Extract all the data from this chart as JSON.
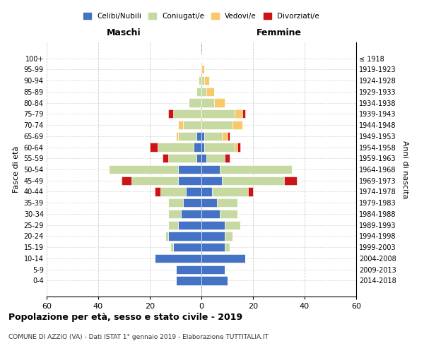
{
  "age_groups": [
    "0-4",
    "5-9",
    "10-14",
    "15-19",
    "20-24",
    "25-29",
    "30-34",
    "35-39",
    "40-44",
    "45-49",
    "50-54",
    "55-59",
    "60-64",
    "65-69",
    "70-74",
    "75-79",
    "80-84",
    "85-89",
    "90-94",
    "95-99",
    "100+"
  ],
  "birth_years": [
    "2014-2018",
    "2009-2013",
    "2004-2008",
    "1999-2003",
    "1994-1998",
    "1989-1993",
    "1984-1988",
    "1979-1983",
    "1974-1978",
    "1969-1973",
    "1964-1968",
    "1959-1963",
    "1954-1958",
    "1949-1953",
    "1944-1948",
    "1939-1943",
    "1934-1938",
    "1929-1933",
    "1924-1928",
    "1919-1923",
    "≤ 1918"
  ],
  "maschi": {
    "celibi": [
      10,
      10,
      18,
      11,
      13,
      9,
      8,
      7,
      6,
      9,
      9,
      2,
      3,
      2,
      0,
      0,
      0,
      0,
      0,
      0,
      0
    ],
    "coniugati": [
      0,
      0,
      0,
      1,
      1,
      4,
      5,
      6,
      10,
      18,
      27,
      11,
      14,
      7,
      7,
      11,
      5,
      2,
      1,
      0,
      0
    ],
    "vedovi": [
      0,
      0,
      0,
      0,
      0,
      0,
      0,
      0,
      0,
      0,
      0,
      0,
      0,
      1,
      2,
      0,
      0,
      0,
      0,
      0,
      0
    ],
    "divorziati": [
      0,
      0,
      0,
      0,
      0,
      0,
      0,
      0,
      2,
      4,
      0,
      2,
      3,
      0,
      0,
      2,
      0,
      0,
      0,
      0,
      0
    ]
  },
  "femmine": {
    "nubili": [
      10,
      9,
      17,
      9,
      9,
      9,
      7,
      6,
      4,
      8,
      7,
      2,
      1,
      1,
      0,
      0,
      0,
      0,
      0,
      0,
      0
    ],
    "coniugate": [
      0,
      0,
      0,
      2,
      3,
      6,
      7,
      8,
      14,
      24,
      28,
      7,
      12,
      7,
      12,
      13,
      5,
      2,
      1,
      0,
      0
    ],
    "vedove": [
      0,
      0,
      0,
      0,
      0,
      0,
      0,
      0,
      0,
      0,
      0,
      0,
      1,
      2,
      4,
      3,
      4,
      3,
      2,
      1,
      0
    ],
    "divorziate": [
      0,
      0,
      0,
      0,
      0,
      0,
      0,
      0,
      2,
      5,
      0,
      2,
      1,
      1,
      0,
      1,
      0,
      0,
      0,
      0,
      0
    ]
  },
  "colors": {
    "celibi": "#4472C4",
    "coniugati": "#C6D9A0",
    "vedovi": "#F9C86A",
    "divorziati": "#CC1417"
  },
  "xlim": 60,
  "title": "Popolazione per età, sesso e stato civile - 2019",
  "subtitle": "COMUNE DI AZZIO (VA) - Dati ISTAT 1° gennaio 2019 - Elaborazione TUTTITALIA.IT",
  "ylabel_left": "Fasce di età",
  "ylabel_right": "Anni di nascita",
  "xlabel_maschi": "Maschi",
  "xlabel_femmine": "Femmine",
  "legend_labels": [
    "Celibi/Nubili",
    "Coniugati/e",
    "Vedovi/e",
    "Divorziati/e"
  ],
  "background_color": "#ffffff",
  "grid_color": "#cccccc"
}
